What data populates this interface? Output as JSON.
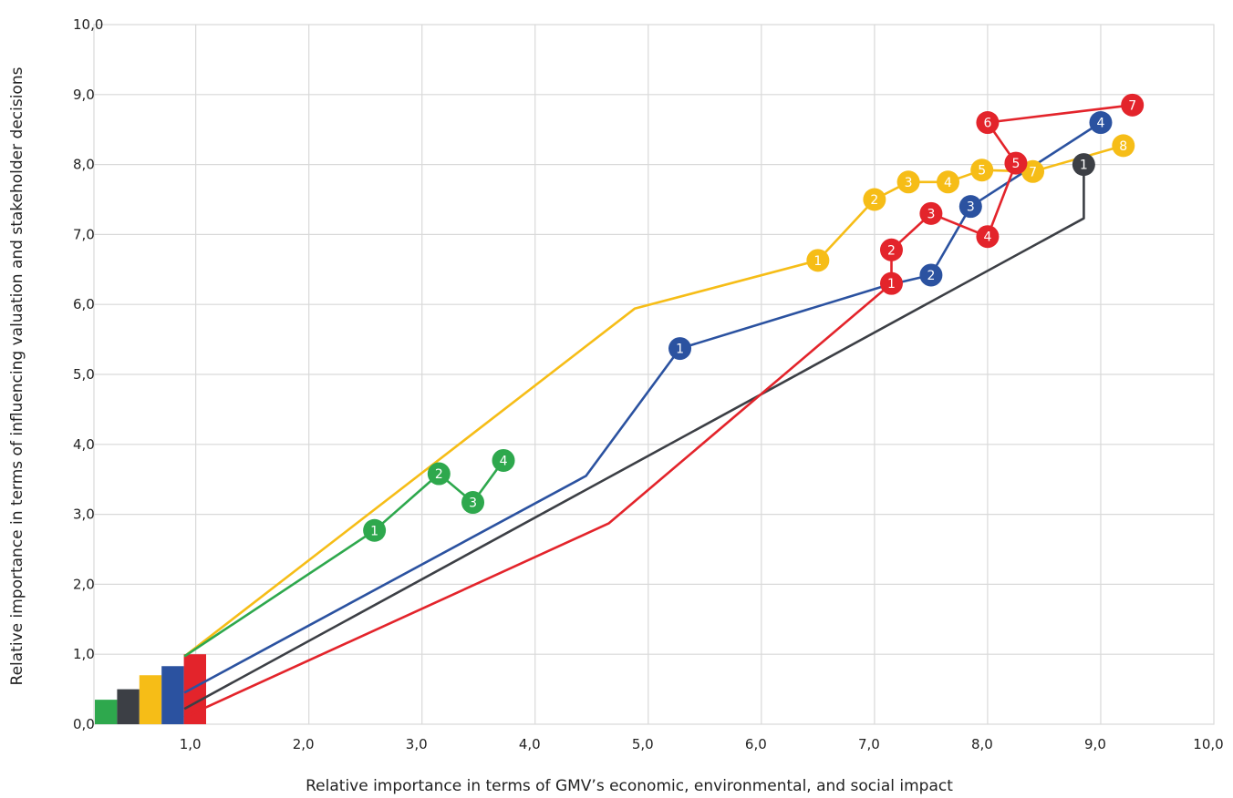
{
  "chart_data": {
    "type": "scatter",
    "title": "",
    "xlabel": "Relative importance in terms of GMV’s economic, environmental, and social impact",
    "ylabel": "Relative importance in terms of influencing valuation and stakeholder decisions",
    "xlim": [
      0.1,
      10.0
    ],
    "ylim": [
      0.0,
      10.0
    ],
    "grid": true,
    "x_ticks": [
      "1,0",
      "2,0",
      "3,0",
      "4,0",
      "5,0",
      "6,0",
      "7,0",
      "8,0",
      "9,0",
      "10,0"
    ],
    "y_ticks": [
      "0,0",
      "1,0",
      "2,0",
      "3,0",
      "4,0",
      "5,0",
      "6,0",
      "7,0",
      "8,0",
      "9,0",
      "10,0"
    ],
    "colors": {
      "green": "#2ea84d",
      "dark": "#3c3f45",
      "yellow": "#f6bd17",
      "blue": "#2b52a0",
      "red": "#e3242b",
      "grid": "#d9d9d9"
    },
    "legend_bars": [
      {
        "color": "#2ea84d",
        "value": 0.35
      },
      {
        "color": "#3c3f45",
        "value": 0.5
      },
      {
        "color": "#f6bd17",
        "value": 0.7
      },
      {
        "color": "#2b52a0",
        "value": 0.83
      },
      {
        "color": "#e3242b",
        "value": 1.0
      }
    ],
    "series": [
      {
        "color": "#f6bd17",
        "line": [
          [
            0.9,
            0.97
          ],
          [
            4.88,
            5.94
          ],
          [
            6.5,
            6.63
          ],
          [
            7.0,
            7.5
          ],
          [
            7.3,
            7.75
          ],
          [
            7.65,
            7.75
          ],
          [
            7.95,
            7.92
          ],
          [
            8.4,
            7.9
          ],
          [
            9.2,
            8.27
          ]
        ],
        "points": [
          {
            "label": "1",
            "x": 6.5,
            "y": 6.63
          },
          {
            "label": "2",
            "x": 7.0,
            "y": 7.5
          },
          {
            "label": "3",
            "x": 7.3,
            "y": 7.75
          },
          {
            "label": "4",
            "x": 7.65,
            "y": 7.75
          },
          {
            "label": "5",
            "x": 7.95,
            "y": 7.92
          },
          {
            "label": "7",
            "x": 8.4,
            "y": 7.9
          },
          {
            "label": "8",
            "x": 9.2,
            "y": 8.27
          }
        ]
      },
      {
        "color": "#2ea84d",
        "line": [
          [
            0.9,
            0.97
          ],
          [
            2.58,
            2.77
          ],
          [
            3.15,
            3.58
          ],
          [
            3.45,
            3.17
          ],
          [
            3.72,
            3.77
          ]
        ],
        "points": [
          {
            "label": "1",
            "x": 2.58,
            "y": 2.77
          },
          {
            "label": "2",
            "x": 3.15,
            "y": 3.58
          },
          {
            "label": "3",
            "x": 3.45,
            "y": 3.17
          },
          {
            "label": "4",
            "x": 3.72,
            "y": 3.77
          }
        ]
      },
      {
        "color": "#2b52a0",
        "line": [
          [
            0.9,
            0.45
          ],
          [
            4.45,
            3.55
          ],
          [
            5.28,
            5.37
          ],
          [
            7.1,
            6.27
          ],
          [
            7.5,
            6.42
          ],
          [
            7.85,
            7.4
          ],
          [
            9.0,
            8.6
          ]
        ],
        "points": [
          {
            "label": "1",
            "x": 5.28,
            "y": 5.37
          },
          {
            "label": "2",
            "x": 7.5,
            "y": 6.42
          },
          {
            "label": "3",
            "x": 7.85,
            "y": 7.4
          },
          {
            "label": "4",
            "x": 9.0,
            "y": 8.6
          }
        ]
      },
      {
        "color": "#3c3f45",
        "line": [
          [
            0.9,
            0.22
          ],
          [
            8.85,
            7.23
          ],
          [
            8.85,
            8.0
          ]
        ],
        "points": [
          {
            "label": "1",
            "x": 8.85,
            "y": 8.0
          }
        ]
      },
      {
        "color": "#e3242b",
        "line": [
          [
            0.9,
            0.1
          ],
          [
            4.65,
            2.87
          ],
          [
            7.15,
            6.3
          ],
          [
            7.15,
            6.78
          ],
          [
            7.5,
            7.3
          ],
          [
            8.0,
            6.97
          ],
          [
            8.25,
            8.02
          ],
          [
            8.0,
            8.6
          ],
          [
            9.28,
            8.85
          ]
        ],
        "points": [
          {
            "label": "1",
            "x": 7.15,
            "y": 6.3
          },
          {
            "label": "2",
            "x": 7.15,
            "y": 6.78
          },
          {
            "label": "3",
            "x": 7.5,
            "y": 7.3
          },
          {
            "label": "4",
            "x": 8.0,
            "y": 6.97
          },
          {
            "label": "5",
            "x": 8.25,
            "y": 8.02
          },
          {
            "label": "6",
            "x": 8.0,
            "y": 8.6
          },
          {
            "label": "7",
            "x": 9.28,
            "y": 8.85
          }
        ]
      }
    ]
  }
}
